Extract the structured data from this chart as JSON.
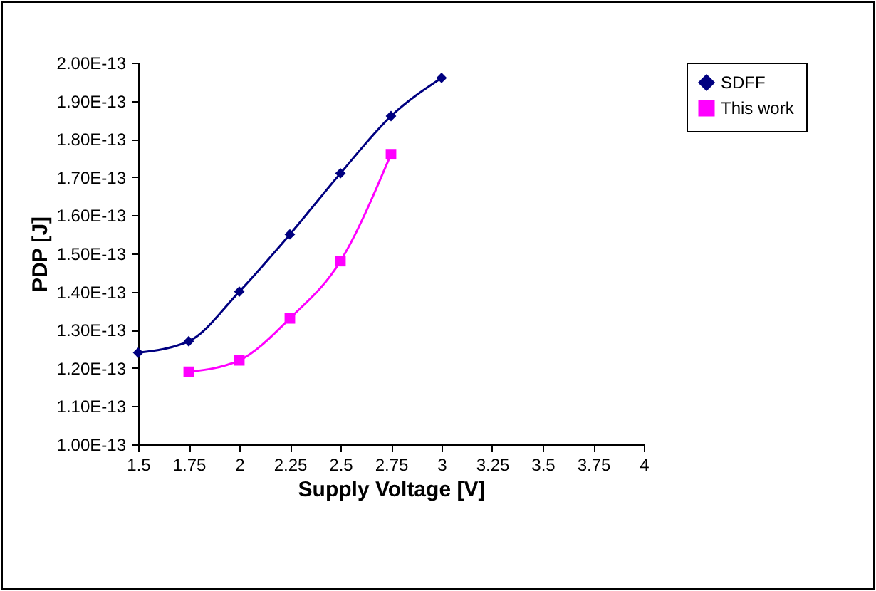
{
  "chart_data": {
    "type": "line",
    "xlabel": "Supply Voltage [V]",
    "ylabel": "PDP [J]",
    "x": [
      1.5,
      1.75,
      2,
      2.25,
      2.5,
      2.75,
      3
    ],
    "series": [
      {
        "name": "SDFF",
        "color": "#000080",
        "marker": "diamond",
        "values": [
          1.24e-13,
          1.27e-13,
          1.4e-13,
          1.55e-13,
          1.71e-13,
          1.86e-13,
          1.96e-13
        ]
      },
      {
        "name": "This work",
        "color": "#ff00ff",
        "marker": "square",
        "values": [
          null,
          1.19e-13,
          1.22e-13,
          1.33e-13,
          1.48e-13,
          1.76e-13,
          null
        ]
      }
    ],
    "xlim": [
      1.5,
      4
    ],
    "xticks": [
      1.5,
      1.75,
      2,
      2.25,
      2.5,
      2.75,
      3,
      3.25,
      3.5,
      3.75,
      4
    ],
    "ylim": [
      1e-13,
      2e-13
    ],
    "yticks": [
      {
        "value": 1e-13,
        "label": "1.00E-13"
      },
      {
        "value": 1.1e-13,
        "label": "1.10E-13"
      },
      {
        "value": 1.2e-13,
        "label": "1.20E-13"
      },
      {
        "value": 1.3e-13,
        "label": "1.30E-13"
      },
      {
        "value": 1.4e-13,
        "label": "1.40E-13"
      },
      {
        "value": 1.5e-13,
        "label": "1.50E-13"
      },
      {
        "value": 1.6e-13,
        "label": "1.60E-13"
      },
      {
        "value": 1.7e-13,
        "label": "1.70E-13"
      },
      {
        "value": 1.8e-13,
        "label": "1.80E-13"
      },
      {
        "value": 1.9e-13,
        "label": "1.90E-13"
      },
      {
        "value": 2e-13,
        "label": "2.00E-13"
      }
    ],
    "grid": false,
    "legend": "right",
    "line_style": "solid"
  }
}
